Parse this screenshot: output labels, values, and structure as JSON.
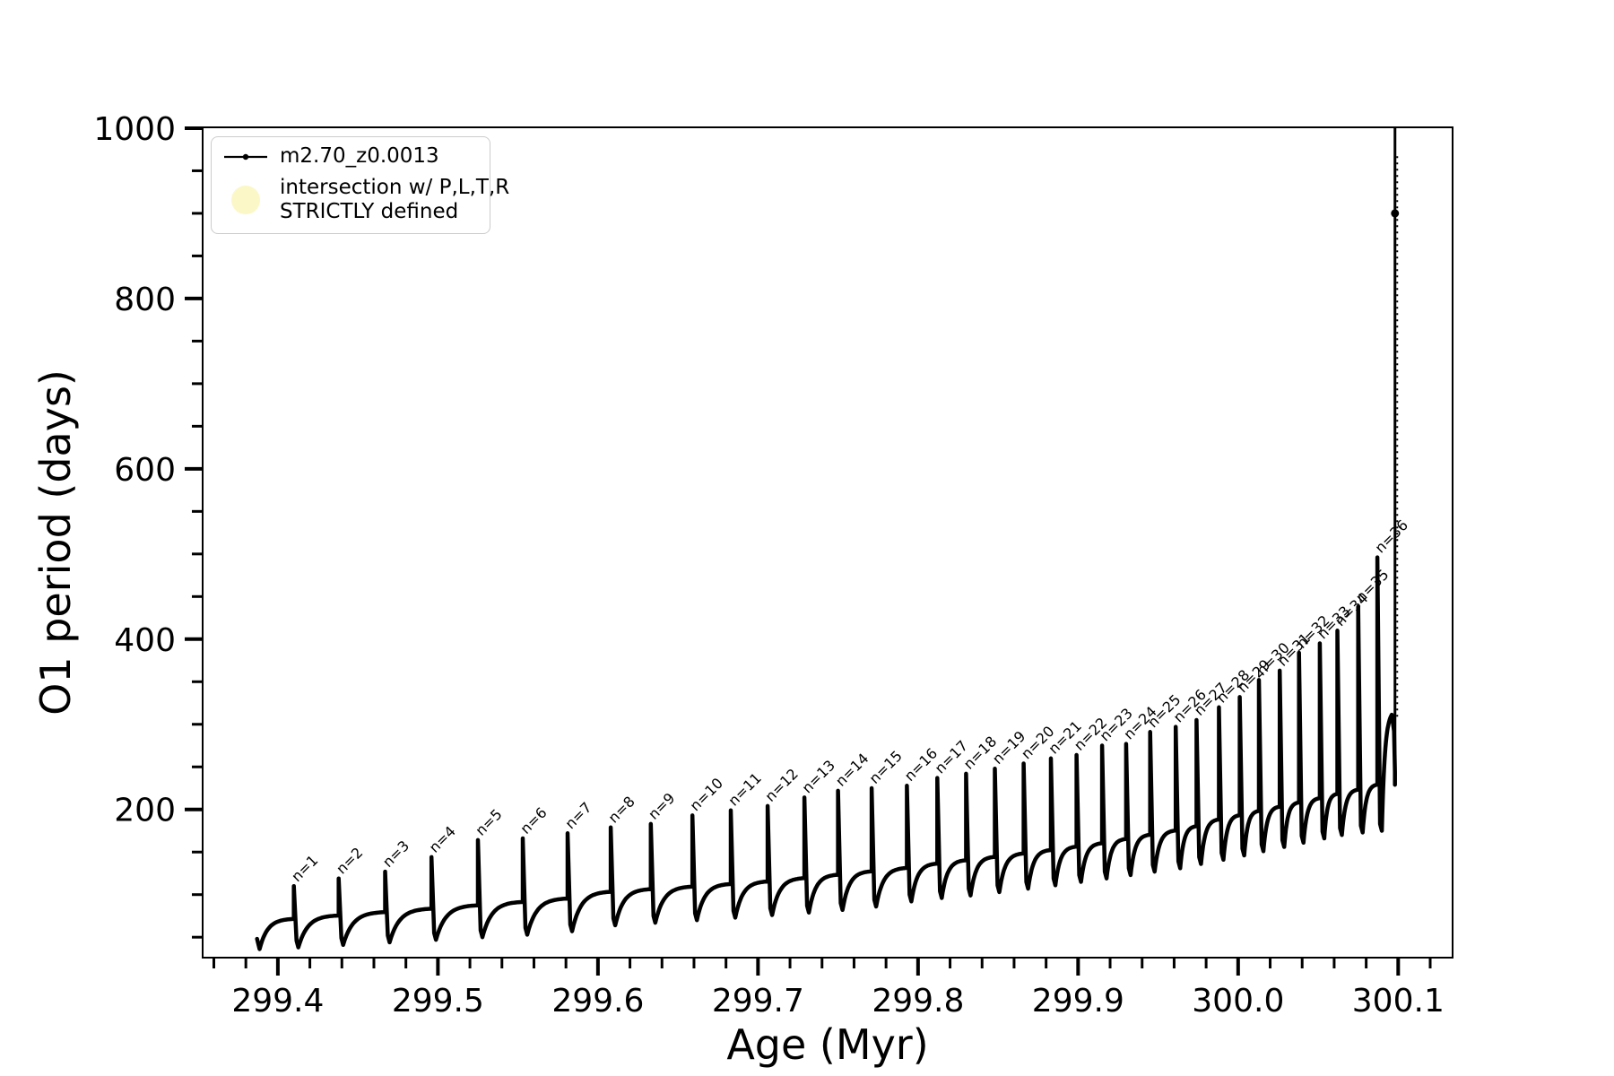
{
  "legend": {
    "items": [
      {
        "label": "m2.70_z0.0013",
        "marker": "line-dot",
        "color": "#000000"
      },
      {
        "line1": "intersection w/ P,L,T,R",
        "line2": "STRICTLY defined",
        "marker": "dot",
        "color": "#fbf7c6"
      }
    ]
  },
  "chart_data": {
    "type": "line",
    "title": "",
    "xlabel": "Age (Myr)",
    "ylabel": "O1 period (days)",
    "xlim": [
      299.353,
      300.134
    ],
    "ylim": [
      26,
      1001
    ],
    "grid": false,
    "legend_position": "upper left",
    "series_label": "m2.70_z0.0013",
    "line_color": "#000000",
    "xticks_major": [
      299.4,
      299.5,
      299.6,
      299.7,
      299.8,
      299.9,
      300.0,
      300.1
    ],
    "xtick_labels": [
      "299.4",
      "299.5",
      "299.6",
      "299.7",
      "299.8",
      "299.9",
      "300.0",
      "300.1"
    ],
    "yticks_major": [
      200,
      400,
      600,
      800,
      1000
    ],
    "ytick_labels": [
      "200",
      "400",
      "600",
      "800",
      "1000"
    ],
    "xtick_minor_start": 299.36,
    "xtick_minor_step": 0.02,
    "xtick_minor_count": 39,
    "ytick_minor_step": 50,
    "track_start": {
      "age": 299.387,
      "period": 48,
      "initial_dip": 36
    },
    "pulses": [
      {
        "n": 1,
        "label": "n=1",
        "age": 299.41,
        "peak": 110,
        "plateau": 72,
        "dip": 38
      },
      {
        "n": 2,
        "label": "n=2",
        "age": 299.438,
        "peak": 119,
        "plateau": 76,
        "dip": 41
      },
      {
        "n": 3,
        "label": "n=3",
        "age": 299.467,
        "peak": 127,
        "plateau": 80,
        "dip": 44
      },
      {
        "n": 4,
        "label": "n=4",
        "age": 299.496,
        "peak": 144,
        "plateau": 84,
        "dip": 47
      },
      {
        "n": 5,
        "label": "n=5",
        "age": 299.525,
        "peak": 164,
        "plateau": 88,
        "dip": 50
      },
      {
        "n": 6,
        "label": "n=6",
        "age": 299.553,
        "peak": 166,
        "plateau": 92,
        "dip": 53
      },
      {
        "n": 7,
        "label": "n=7",
        "age": 299.581,
        "peak": 172,
        "plateau": 96,
        "dip": 57
      },
      {
        "n": 8,
        "label": "n=8",
        "age": 299.608,
        "peak": 179,
        "plateau": 104,
        "dip": 64
      },
      {
        "n": 9,
        "label": "n=9",
        "age": 299.633,
        "peak": 183,
        "plateau": 107,
        "dip": 67
      },
      {
        "n": 10,
        "label": "n=10",
        "age": 299.659,
        "peak": 193,
        "plateau": 110,
        "dip": 70
      },
      {
        "n": 11,
        "label": "n=11",
        "age": 299.683,
        "peak": 199,
        "plateau": 113,
        "dip": 73
      },
      {
        "n": 12,
        "label": "n=12",
        "age": 299.706,
        "peak": 204,
        "plateau": 116,
        "dip": 76
      },
      {
        "n": 13,
        "label": "n=13",
        "age": 299.729,
        "peak": 214,
        "plateau": 120,
        "dip": 79
      },
      {
        "n": 14,
        "label": "n=14",
        "age": 299.75,
        "peak": 222,
        "plateau": 124,
        "dip": 82
      },
      {
        "n": 15,
        "label": "n=15",
        "age": 299.771,
        "peak": 225,
        "plateau": 128,
        "dip": 86
      },
      {
        "n": 16,
        "label": "n=16",
        "age": 299.793,
        "peak": 228,
        "plateau": 132,
        "dip": 92
      },
      {
        "n": 17,
        "label": "n=17",
        "age": 299.812,
        "peak": 237,
        "plateau": 137,
        "dip": 96
      },
      {
        "n": 18,
        "label": "n=18",
        "age": 299.83,
        "peak": 242,
        "plateau": 141,
        "dip": 99
      },
      {
        "n": 19,
        "label": "n=19",
        "age": 299.848,
        "peak": 248,
        "plateau": 145,
        "dip": 103
      },
      {
        "n": 20,
        "label": "n=20",
        "age": 299.866,
        "peak": 254,
        "plateau": 149,
        "dip": 107
      },
      {
        "n": 21,
        "label": "n=21",
        "age": 299.883,
        "peak": 260,
        "plateau": 153,
        "dip": 111
      },
      {
        "n": 22,
        "label": "n=22",
        "age": 299.899,
        "peak": 264,
        "plateau": 157,
        "dip": 115
      },
      {
        "n": 23,
        "label": "n=23",
        "age": 299.915,
        "peak": 275,
        "plateau": 161,
        "dip": 119
      },
      {
        "n": 24,
        "label": "n=24",
        "age": 299.93,
        "peak": 277,
        "plateau": 166,
        "dip": 123
      },
      {
        "n": 25,
        "label": "n=25",
        "age": 299.945,
        "peak": 291,
        "plateau": 171,
        "dip": 127
      },
      {
        "n": 26,
        "label": "n=26",
        "age": 299.961,
        "peak": 297,
        "plateau": 176,
        "dip": 131
      },
      {
        "n": 27,
        "label": "n=27",
        "age": 299.974,
        "peak": 305,
        "plateau": 181,
        "dip": 136
      },
      {
        "n": 28,
        "label": "n=28",
        "age": 299.988,
        "peak": 320,
        "plateau": 189,
        "dip": 141
      },
      {
        "n": 29,
        "label": "n=29",
        "age": 300.001,
        "peak": 332,
        "plateau": 194,
        "dip": 146
      },
      {
        "n": 30,
        "label": "n=30",
        "age": 300.013,
        "peak": 352,
        "plateau": 199,
        "dip": 151
      },
      {
        "n": 31,
        "label": "n=31",
        "age": 300.026,
        "peak": 363,
        "plateau": 204,
        "dip": 156
      },
      {
        "n": 32,
        "label": "n=32",
        "age": 300.038,
        "peak": 384,
        "plateau": 209,
        "dip": 161
      },
      {
        "n": 33,
        "label": "n=33",
        "age": 300.051,
        "peak": 395,
        "plateau": 214,
        "dip": 166
      },
      {
        "n": 34,
        "label": "n=34",
        "age": 300.062,
        "peak": 410,
        "plateau": 219,
        "dip": 170
      },
      {
        "n": 35,
        "label": "n=35",
        "age": 300.075,
        "peak": 438,
        "plateau": 224,
        "dip": 173
      },
      {
        "n": 36,
        "label": "n=36",
        "age": 300.087,
        "peak": 496,
        "plateau": 230,
        "dip": 175
      }
    ],
    "final_runaway": {
      "hump_age": 300.096,
      "hump_peak": 317,
      "runaway_age": 300.098,
      "drop_to": 229,
      "rise_to": 1000,
      "blob_period": 900
    }
  }
}
